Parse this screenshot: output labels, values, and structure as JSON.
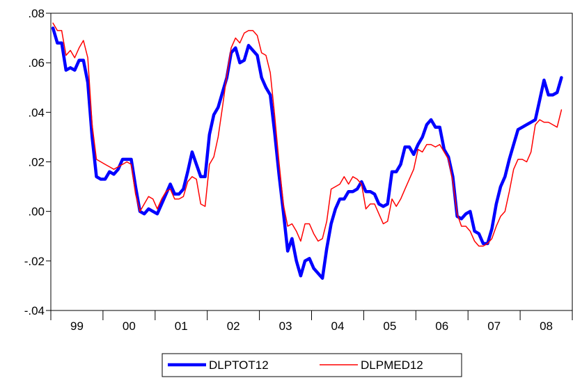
{
  "chart_data": {
    "type": "line",
    "title": "",
    "xlabel": "",
    "ylabel": "",
    "x_start": "1999-01",
    "frequency": "monthly",
    "x_tick_labels": [
      "99",
      "00",
      "01",
      "02",
      "03",
      "04",
      "05",
      "06",
      "07",
      "08"
    ],
    "y_tick_labels": [
      ".08",
      ".06",
      ".04",
      ".02",
      ".00",
      "-.02",
      "-.04"
    ],
    "ylim": [
      -0.04,
      0.08
    ],
    "y_ticks": [
      0.08,
      0.06,
      0.04,
      0.02,
      0.0,
      -0.02,
      -0.04
    ],
    "grid": false,
    "legend_position": "bottom-center",
    "series": [
      {
        "name": "DLPTOT12",
        "color": "#0000FF",
        "values": [
          0.074,
          0.068,
          0.068,
          0.057,
          0.058,
          0.057,
          0.061,
          0.061,
          0.052,
          0.03,
          0.014,
          0.013,
          0.013,
          0.016,
          0.015,
          0.017,
          0.021,
          0.021,
          0.021,
          0.01,
          0.0,
          -0.001,
          0.001,
          0.0,
          -0.001,
          0.003,
          0.007,
          0.011,
          0.007,
          0.007,
          0.009,
          0.016,
          0.024,
          0.019,
          0.014,
          0.014,
          0.031,
          0.039,
          0.042,
          0.048,
          0.054,
          0.064,
          0.066,
          0.06,
          0.061,
          0.067,
          0.065,
          0.063,
          0.054,
          0.05,
          0.047,
          0.032,
          0.015,
          0.0,
          -0.016,
          -0.011,
          -0.02,
          -0.026,
          -0.02,
          -0.019,
          -0.023,
          -0.025,
          -0.027,
          -0.015,
          -0.005,
          0.001,
          0.005,
          0.005,
          0.008,
          0.008,
          0.009,
          0.012,
          0.008,
          0.008,
          0.007,
          0.003,
          0.002,
          0.003,
          0.016,
          0.016,
          0.019,
          0.026,
          0.026,
          0.023,
          0.027,
          0.03,
          0.035,
          0.037,
          0.034,
          0.034,
          0.025,
          0.022,
          0.014,
          -0.002,
          -0.003,
          -0.001,
          0.0,
          -0.008,
          -0.009,
          -0.013,
          -0.013,
          -0.007,
          0.003,
          0.01,
          0.014,
          0.021,
          0.027,
          0.033,
          0.034,
          0.035,
          0.036,
          0.037,
          0.045,
          0.053,
          0.047,
          0.047,
          0.048,
          0.054
        ]
      },
      {
        "name": "DLPMED12",
        "color": "#FF0000",
        "values": [
          0.076,
          0.073,
          0.073,
          0.063,
          0.065,
          0.062,
          0.066,
          0.069,
          0.062,
          0.035,
          0.021,
          0.02,
          0.019,
          0.018,
          0.017,
          0.018,
          0.019,
          0.02,
          0.019,
          0.007,
          0.0,
          0.003,
          0.006,
          0.005,
          0.001,
          0.005,
          0.008,
          0.009,
          0.005,
          0.005,
          0.006,
          0.012,
          0.014,
          0.013,
          0.003,
          0.002,
          0.019,
          0.022,
          0.03,
          0.042,
          0.055,
          0.066,
          0.07,
          0.068,
          0.072,
          0.073,
          0.073,
          0.071,
          0.064,
          0.063,
          0.056,
          0.039,
          0.02,
          0.003,
          -0.006,
          -0.005,
          -0.008,
          -0.012,
          -0.005,
          -0.005,
          -0.009,
          -0.012,
          -0.011,
          -0.004,
          0.009,
          0.01,
          0.011,
          0.014,
          0.011,
          0.014,
          0.013,
          0.011,
          0.001,
          0.003,
          0.003,
          -0.001,
          -0.005,
          -0.004,
          0.005,
          0.002,
          0.005,
          0.009,
          0.013,
          0.017,
          0.025,
          0.024,
          0.027,
          0.027,
          0.026,
          0.027,
          0.024,
          0.021,
          0.012,
          -0.001,
          -0.006,
          -0.006,
          -0.008,
          -0.012,
          -0.014,
          -0.014,
          -0.013,
          -0.011,
          -0.006,
          -0.002,
          0.0,
          0.008,
          0.017,
          0.021,
          0.021,
          0.02,
          0.024,
          0.035,
          0.037,
          0.036,
          0.036,
          0.035,
          0.034,
          0.041
        ]
      }
    ]
  }
}
